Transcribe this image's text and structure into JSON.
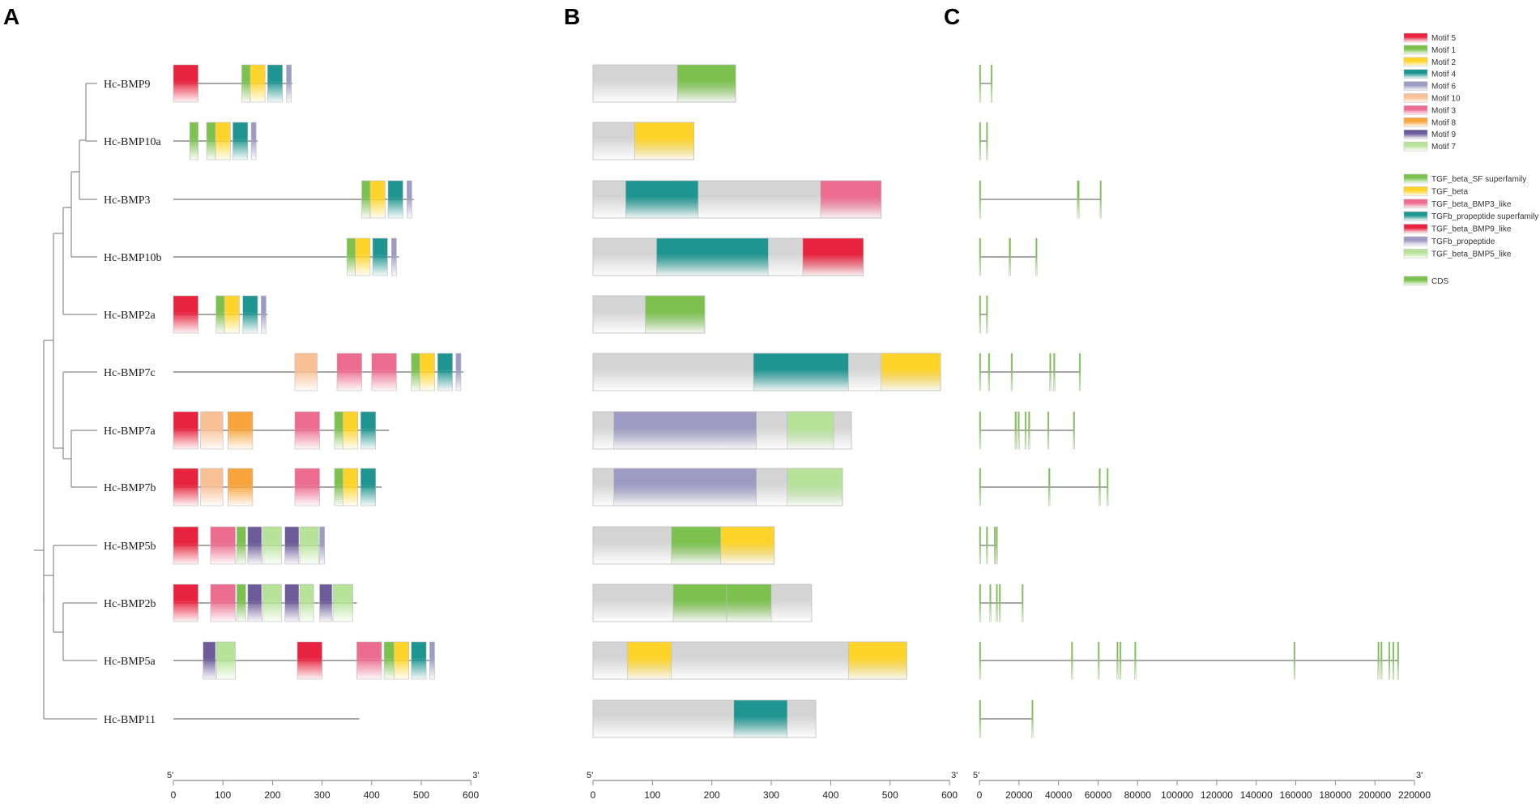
{
  "panels": [
    {
      "label": "A"
    },
    {
      "label": "B"
    },
    {
      "label": "C"
    }
  ],
  "genes": [
    "Hc-BMP9",
    "Hc-BMP10a",
    "Hc-BMP3",
    "Hc-BMP10b",
    "Hc-BMP2a",
    "Hc-BMP7c",
    "Hc-BMP7a",
    "Hc-BMP7b",
    "Hc-BMP5b",
    "Hc-BMP2b",
    "Hc-BMP5a",
    "Hc-BMP11"
  ],
  "colors": {
    "Motif 5": "#e8233f",
    "Motif 1": "#7cc14e",
    "Motif 2": "#ffd42a",
    "Motif 4": "#1e9590",
    "Motif 6": "#9e9bc2",
    "Motif 10": "#f9bf95",
    "Motif 3": "#ec6c90",
    "Motif 8": "#f6a43b",
    "Motif 9": "#6b5b98",
    "Motif 7": "#b7e29a",
    "TGF_beta_SF superfamily": "#7cc14e",
    "TGF_beta": "#ffd42a",
    "TGF_beta_BMP3_like": "#ec6c90",
    "TGFb_propeptide superfamily": "#1e9590",
    "TGF_beta_BMP9_like": "#e8233f",
    "TGFb_propeptide": "#9e9bc2",
    "TGF_beta_BMP5_like": "#b7e29a",
    "CDS": "#7cc14e",
    "gray": "#d4d4d4"
  },
  "legend": {
    "motifs": [
      "Motif 5",
      "Motif 1",
      "Motif 2",
      "Motif 4",
      "Motif 6",
      "Motif 10",
      "Motif 3",
      "Motif 8",
      "Motif 9",
      "Motif 7"
    ],
    "domains": [
      "TGF_beta_SF superfamily",
      "TGF_beta",
      "TGF_beta_BMP3_like",
      "TGFb_propeptide superfamily",
      "TGF_beta_BMP9_like",
      "TGFb_propeptide",
      "TGF_beta_BMP5_like"
    ],
    "structure": [
      "CDS"
    ]
  },
  "motif_panel": {
    "length": [
      240,
      170,
      485,
      455,
      190,
      585,
      435,
      420,
      305,
      370,
      525,
      375
    ],
    "motifs": [
      [
        [
          "Motif 5",
          0,
          50
        ],
        [
          "Motif 1",
          138,
          155
        ],
        [
          "Motif 2",
          155,
          185
        ],
        [
          "Motif 4",
          190,
          220
        ],
        [
          "Motif 6",
          228,
          238
        ]
      ],
      [
        [
          "Motif 1",
          33,
          50
        ],
        [
          "Motif 1",
          67,
          85
        ],
        [
          "Motif 2",
          85,
          115
        ],
        [
          "Motif 4",
          120,
          150
        ],
        [
          "Motif 6",
          157,
          167
        ]
      ],
      [
        [
          "Motif 1",
          380,
          397
        ],
        [
          "Motif 2",
          397,
          427
        ],
        [
          "Motif 4",
          433,
          463
        ],
        [
          "Motif 6",
          471,
          481
        ]
      ],
      [
        [
          "Motif 1",
          350,
          367
        ],
        [
          "Motif 2",
          367,
          397
        ],
        [
          "Motif 4",
          402,
          432
        ],
        [
          "Motif 6",
          440,
          450
        ]
      ],
      [
        [
          "Motif 5",
          0,
          50
        ],
        [
          "Motif 1",
          86,
          103
        ],
        [
          "Motif 2",
          103,
          133
        ],
        [
          "Motif 4",
          140,
          170
        ],
        [
          "Motif 6",
          177,
          187
        ]
      ],
      [
        [
          "Motif 10",
          245,
          290
        ],
        [
          "Motif 3",
          330,
          380
        ],
        [
          "Motif 3",
          400,
          450
        ],
        [
          "Motif 1",
          480,
          497
        ],
        [
          "Motif 2",
          497,
          527
        ],
        [
          "Motif 4",
          533,
          563
        ],
        [
          "Motif 6",
          570,
          580
        ]
      ],
      [
        [
          "Motif 5",
          0,
          50
        ],
        [
          "Motif 10",
          55,
          100
        ],
        [
          "Motif 8",
          110,
          160
        ],
        [
          "Motif 3",
          245,
          295
        ],
        [
          "Motif 1",
          325,
          342
        ],
        [
          "Motif 2",
          342,
          372
        ],
        [
          "Motif 4",
          378,
          408
        ]
      ],
      [
        [
          "Motif 5",
          0,
          50
        ],
        [
          "Motif 10",
          55,
          100
        ],
        [
          "Motif 8",
          110,
          160
        ],
        [
          "Motif 3",
          245,
          295
        ],
        [
          "Motif 1",
          325,
          342
        ],
        [
          "Motif 2",
          342,
          372
        ],
        [
          "Motif 4",
          378,
          408
        ]
      ],
      [
        [
          "Motif 5",
          0,
          50
        ],
        [
          "Motif 3",
          75,
          125
        ],
        [
          "Motif 1",
          128,
          146
        ],
        [
          "Motif 9",
          150,
          178
        ],
        [
          "Motif 7",
          180,
          218
        ],
        [
          "Motif 9",
          225,
          253
        ],
        [
          "Motif 7",
          255,
          293
        ],
        [
          "Motif 6",
          295,
          305
        ]
      ],
      [
        [
          "Motif 5",
          0,
          50
        ],
        [
          "Motif 3",
          75,
          125
        ],
        [
          "Motif 1",
          128,
          146
        ],
        [
          "Motif 9",
          150,
          178
        ],
        [
          "Motif 7",
          180,
          218
        ],
        [
          "Motif 9",
          225,
          253
        ],
        [
          "Motif 7",
          255,
          283
        ],
        [
          "Motif 9",
          295,
          320
        ],
        [
          "Motif 7",
          322,
          362
        ]
      ],
      [
        [
          "Motif 9",
          60,
          85
        ],
        [
          "Motif 7",
          87,
          125
        ],
        [
          "Motif 5",
          250,
          300
        ],
        [
          "Motif 3",
          370,
          420
        ],
        [
          "Motif 1",
          425,
          445
        ],
        [
          "Motif 2",
          445,
          475
        ],
        [
          "Motif 4",
          480,
          510
        ],
        [
          "Motif 6",
          517,
          527
        ]
      ],
      []
    ],
    "axis": {
      "start_label": "5'",
      "end_label": "3'",
      "ticks": [
        0,
        100,
        200,
        300,
        400,
        500,
        600
      ],
      "max": 600
    }
  },
  "domain_panel": {
    "length": [
      240,
      170,
      485,
      455,
      188,
      585,
      435,
      420,
      305,
      368,
      528,
      375
    ],
    "domains": [
      [
        [
          "TGF_beta_SF superfamily",
          142,
          240
        ]
      ],
      [
        [
          "TGF_beta",
          70,
          170
        ]
      ],
      [
        [
          "TGFb_propeptide superfamily",
          55,
          177
        ],
        [
          "TGF_beta_BMP3_like",
          383,
          485
        ]
      ],
      [
        [
          "TGFb_propeptide superfamily",
          107,
          295
        ],
        [
          "TGF_beta_BMP9_like",
          353,
          455
        ]
      ],
      [
        [
          "TGF_beta_SF superfamily",
          88,
          188
        ]
      ],
      [
        [
          "TGFb_propeptide superfamily",
          270,
          430
        ],
        [
          "TGF_beta",
          485,
          585
        ]
      ],
      [
        [
          "TGFb_propeptide",
          35,
          275
        ],
        [
          "TGF_beta_BMP5_like",
          327,
          405
        ]
      ],
      [
        [
          "TGFb_propeptide",
          35,
          275
        ],
        [
          "TGF_beta_BMP5_like",
          327,
          420
        ]
      ],
      [
        [
          "TGF_beta_SF superfamily",
          132,
          215
        ],
        [
          "TGF_beta",
          215,
          305
        ]
      ],
      [
        [
          "TGF_beta_SF superfamily",
          135,
          225
        ],
        [
          "TGF_beta_SF superfamily",
          225,
          300
        ]
      ],
      [
        [
          "TGF_beta",
          58,
          132
        ],
        [
          "TGF_beta",
          430,
          528
        ]
      ],
      [
        [
          "TGFb_propeptide superfamily",
          237,
          327
        ]
      ]
    ],
    "axis": {
      "start_label": "5'",
      "end_label": "3'",
      "ticks": [
        0,
        100,
        200,
        300,
        400,
        500,
        600
      ],
      "max": 600
    }
  },
  "structure_panel": {
    "length": [
      6500,
      4000,
      61500,
      29000,
      4000,
      51000,
      48000,
      65000,
      9000,
      22000,
      212000,
      27000
    ],
    "cds": [
      [
        [
          0,
          400
        ],
        [
          5800,
          6500
        ]
      ],
      [
        [
          0,
          400
        ],
        [
          3500,
          4000
        ]
      ],
      [
        [
          0,
          400
        ],
        [
          49500,
          50500
        ],
        [
          61000,
          61500
        ]
      ],
      [
        [
          0,
          400
        ],
        [
          15000,
          15800
        ],
        [
          28500,
          29000
        ]
      ],
      [
        [
          0,
          400
        ],
        [
          3500,
          4000
        ]
      ],
      [
        [
          0,
          400
        ],
        [
          4500,
          5200
        ],
        [
          16000,
          16700
        ],
        [
          35500,
          36200
        ],
        [
          37500,
          38200
        ],
        [
          50500,
          51000
        ]
      ],
      [
        [
          0,
          400
        ],
        [
          18000,
          18700
        ],
        [
          19500,
          20200
        ],
        [
          23000,
          23700
        ],
        [
          24800,
          25500
        ],
        [
          34500,
          35200
        ],
        [
          47500,
          48000
        ]
      ],
      [
        [
          0,
          400
        ],
        [
          35000,
          35700
        ],
        [
          60500,
          61200
        ],
        [
          64500,
          65000
        ]
      ],
      [
        [
          0,
          400
        ],
        [
          3500,
          4100
        ],
        [
          7500,
          8100
        ],
        [
          8500,
          9000
        ]
      ],
      [
        [
          0,
          400
        ],
        [
          5200,
          5800
        ],
        [
          8500,
          9100
        ],
        [
          10000,
          10500
        ],
        [
          21500,
          22000
        ]
      ],
      [
        [
          0,
          400
        ],
        [
          46500,
          47100
        ],
        [
          60000,
          60600
        ],
        [
          69500,
          70100
        ],
        [
          71000,
          71600
        ],
        [
          78500,
          79100
        ],
        [
          159000,
          159600
        ],
        [
          201500,
          202100
        ],
        [
          203000,
          203600
        ],
        [
          207000,
          207600
        ],
        [
          209000,
          209600
        ],
        [
          211400,
          212000
        ]
      ],
      [
        [
          0,
          400
        ],
        [
          26500,
          27000
        ]
      ]
    ],
    "axis": {
      "start_label": "5'",
      "end_label": "3'",
      "ticks": [
        0,
        20000,
        40000,
        60000,
        80000,
        100000,
        120000,
        140000,
        160000,
        180000,
        200000,
        220000
      ],
      "max": 220000
    }
  }
}
